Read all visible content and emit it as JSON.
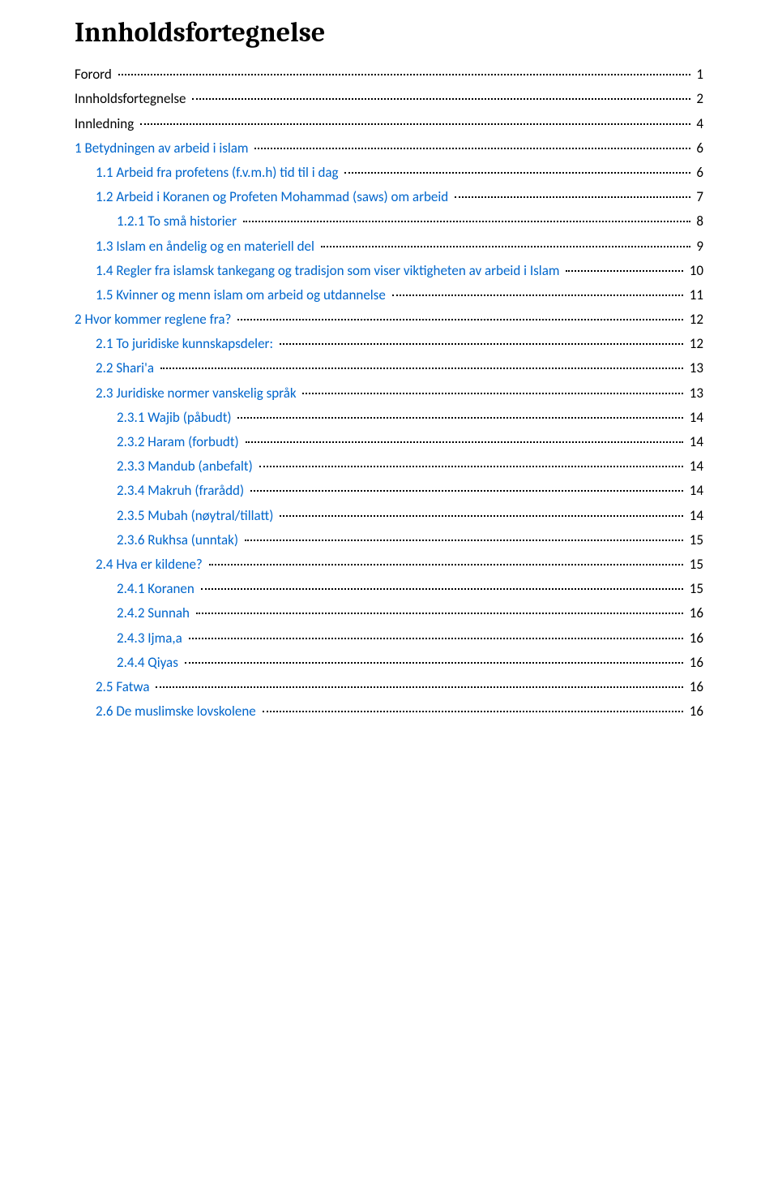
{
  "title": "Innholdsfortegnelse",
  "link_color": "#0066cc",
  "text_color": "#000000",
  "dot_color": "#000000",
  "background_color": "#ffffff",
  "title_fontsize": 34,
  "line_fontsize": 17,
  "toc": [
    {
      "level": 0,
      "label": "Forord",
      "page": "1",
      "black": true
    },
    {
      "level": 0,
      "label": "Innholdsfortegnelse",
      "page": "2",
      "black": true
    },
    {
      "level": 0,
      "label": "Innledning",
      "page": "4",
      "black": true
    },
    {
      "level": 0,
      "label": "1 Betydningen av arbeid i islam",
      "page": "6",
      "black": false
    },
    {
      "level": 1,
      "label": "1.1 Arbeid fra profetens (f.v.m.h) tid til i dag",
      "page": "6",
      "black": false
    },
    {
      "level": 1,
      "label": "1.2 Arbeid i Koranen og Profeten Mohammad (saws) om arbeid",
      "page": "7",
      "black": false
    },
    {
      "level": 2,
      "label": "1.2.1 To små historier",
      "page": "8",
      "black": false
    },
    {
      "level": 1,
      "label": "1.3 Islam en åndelig og en materiell del",
      "page": "9",
      "black": false
    },
    {
      "level": 1,
      "label": "1.4 Regler fra islamsk tankegang og tradisjon som viser viktigheten av arbeid i Islam",
      "page": "10",
      "black": false
    },
    {
      "level": 1,
      "label": "1.5 Kvinner og menn islam om arbeid og utdannelse",
      "page": "11",
      "black": false
    },
    {
      "level": 0,
      "label": "2 Hvor kommer reglene fra?",
      "page": "12",
      "black": false
    },
    {
      "level": 1,
      "label": "2.1 To juridiske kunnskapsdeler:",
      "page": "12",
      "black": false
    },
    {
      "level": 1,
      "label": "2.2 Shari'a",
      "page": "13",
      "black": false
    },
    {
      "level": 1,
      "label": "2.3 Juridiske normer vanskelig språk",
      "page": "13",
      "black": false
    },
    {
      "level": 2,
      "label": "2.3.1 Wajib (påbudt)",
      "page": "14",
      "black": false
    },
    {
      "level": 2,
      "label": "2.3.2 Haram (forbudt)",
      "page": "14",
      "black": false
    },
    {
      "level": 2,
      "label": "2.3.3 Mandub (anbefalt)",
      "page": "14",
      "black": false
    },
    {
      "level": 2,
      "label": "2.3.4 Makruh (frarådd)",
      "page": "14",
      "black": false
    },
    {
      "level": 2,
      "label": "2.3.5 Mubah (nøytral/tillatt)",
      "page": "14",
      "black": false
    },
    {
      "level": 2,
      "label": "2.3.6 Rukhsa (unntak)",
      "page": "15",
      "black": false
    },
    {
      "level": 1,
      "label": "2.4 Hva er kildene?",
      "page": "15",
      "black": false
    },
    {
      "level": 2,
      "label": "2.4.1 Koranen",
      "page": "15",
      "black": false
    },
    {
      "level": 2,
      "label": "2.4.2 Sunnah",
      "page": "16",
      "black": false
    },
    {
      "level": 2,
      "label": "2.4.3 Ijma,a",
      "page": "16",
      "black": false
    },
    {
      "level": 2,
      "label": "2.4.4 Qiyas",
      "page": "16",
      "black": false
    },
    {
      "level": 1,
      "label": "2.5 Fatwa",
      "page": "16",
      "black": false
    },
    {
      "level": 1,
      "label": "2.6 De muslimske lovskolene",
      "page": "16",
      "black": false
    }
  ]
}
